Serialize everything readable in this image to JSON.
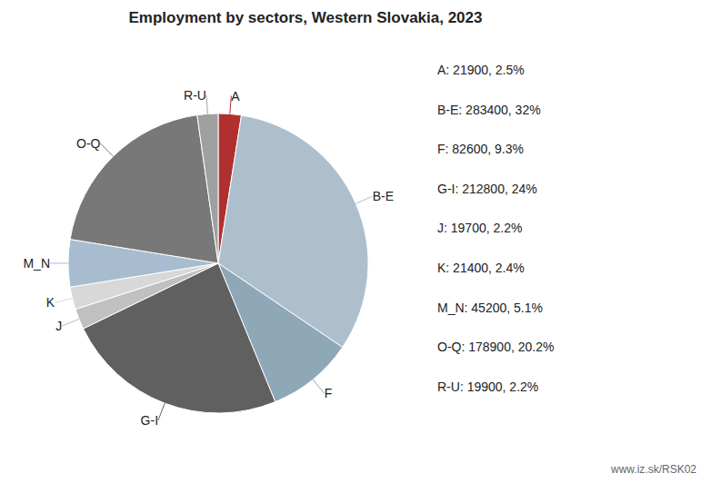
{
  "chart_data": {
    "type": "pie",
    "title": "Employment by sectors, Western Slovakia, 2023",
    "categories": [
      "A",
      "B-E",
      "F",
      "G-I",
      "J",
      "K",
      "M_N",
      "O-Q",
      "R-U"
    ],
    "values": [
      21900,
      283400,
      82600,
      212800,
      19700,
      21400,
      45200,
      178900,
      19900
    ],
    "value_labels": [
      "A: 21900, 2.5%",
      "B-E: 283400, 32%",
      "F: 82600, 9.3%",
      "G-I: 212800, 24%",
      "J: 19700, 2.2%",
      "K: 21400, 2.4%",
      "M_N: 45200, 5.1%",
      "O-Q: 178900, 20.2%",
      "R-U: 19900, 2.2%"
    ],
    "colors": [
      "#b03030",
      "#adbfcc",
      "#8fa8b8",
      "#606060",
      "#c0c0c0",
      "#d8d8d8",
      "#a8bcd0",
      "#787878",
      "#a0a0a0"
    ],
    "annotations": [
      "www.iz.sk/RSK02"
    ]
  }
}
